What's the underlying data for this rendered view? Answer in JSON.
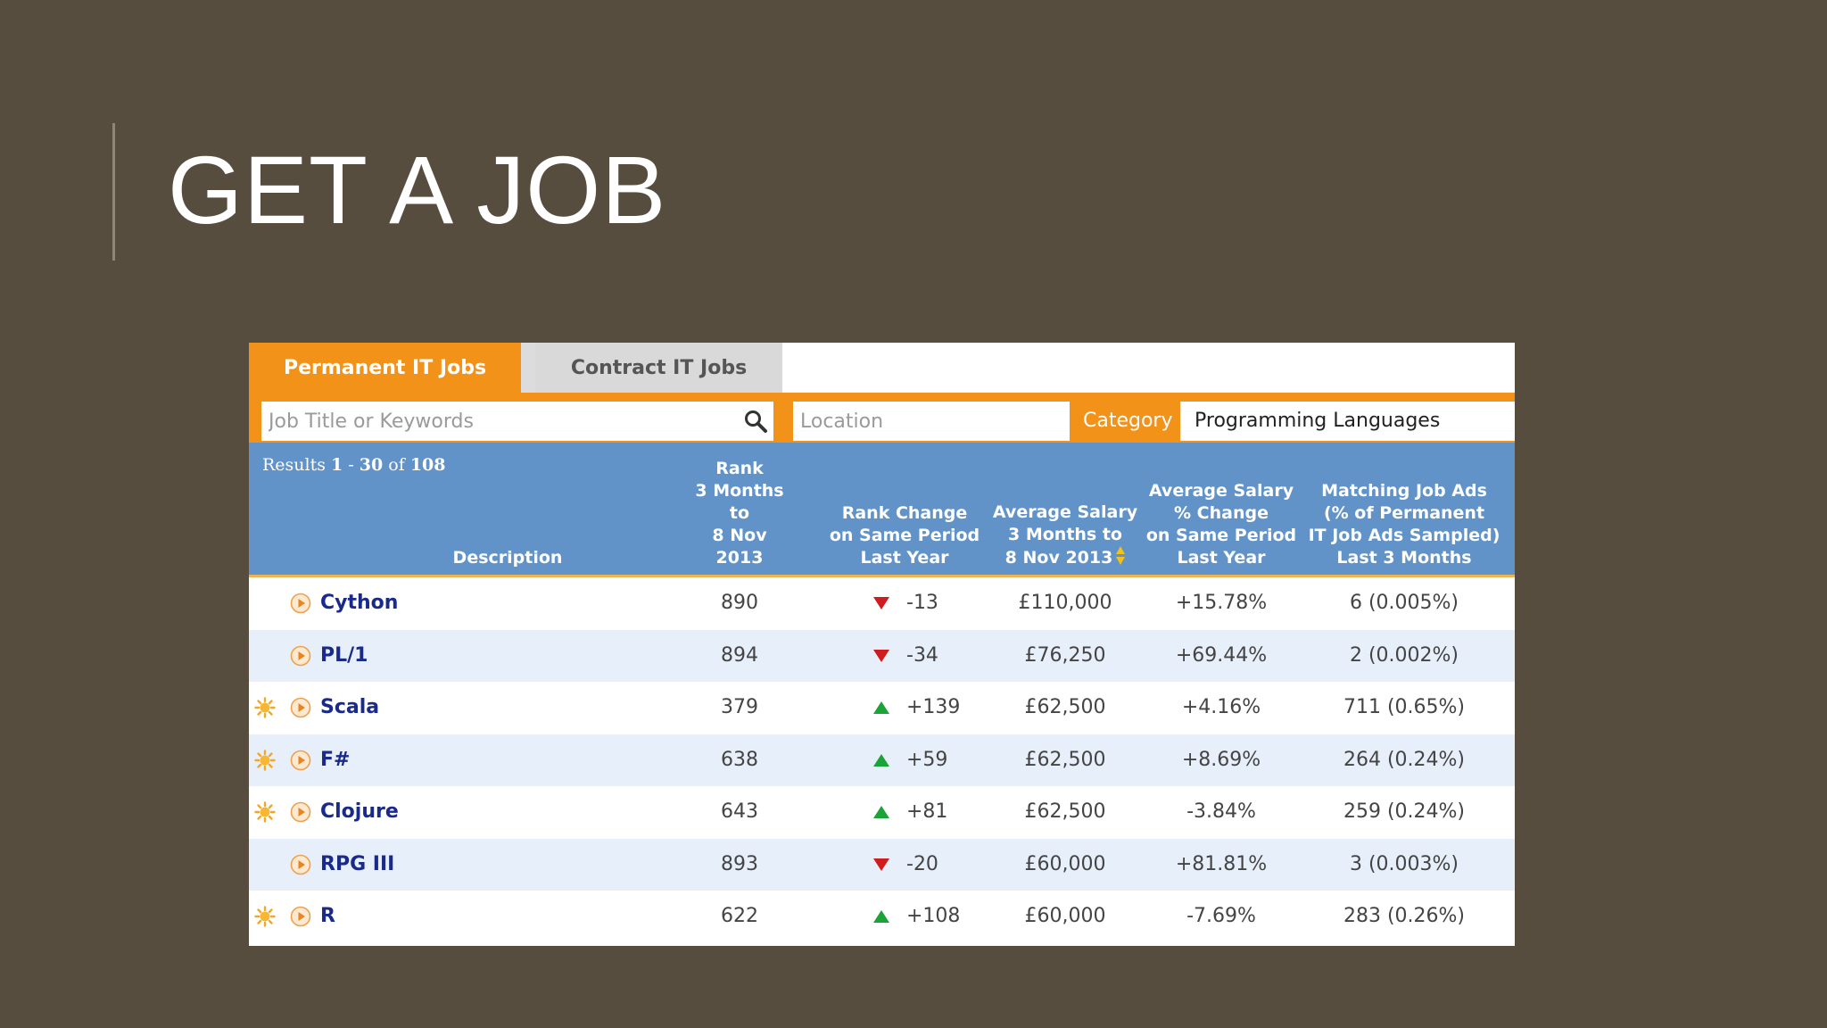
{
  "slide": {
    "title": "GET A JOB"
  },
  "tabs": {
    "permanent": "Permanent IT Jobs",
    "contract": "Contract IT Jobs"
  },
  "search": {
    "keywords_placeholder": "Job Title or Keywords",
    "location_placeholder": "Location",
    "category_label": "Category",
    "category_value": "Programming Languages"
  },
  "results": {
    "prefix": "Results",
    "from": "1",
    "dash": "-",
    "to": "30",
    "of": "of",
    "total": "108"
  },
  "headers": {
    "description": "Description",
    "rank": [
      "Rank",
      "3 Months to",
      "8 Nov 2013"
    ],
    "rank_change": [
      "Rank Change",
      "on Same Period",
      "Last Year"
    ],
    "avg_salary": [
      "Average Salary",
      "3 Months to",
      "8 Nov 2013"
    ],
    "salary_change": [
      "Average Salary",
      "% Change",
      "on Same Period",
      "Last Year"
    ],
    "job_ads": [
      "Matching Job Ads",
      "(% of Permanent",
      "IT Job Ads Sampled)",
      "Last 3 Months"
    ]
  },
  "rows": [
    {
      "name": "Cython",
      "hot": false,
      "rank": "890",
      "trend": "down",
      "change": "-13",
      "salary": "£110,000",
      "salary_change": "+15.78%",
      "ads": "6 (0.005%)"
    },
    {
      "name": "PL/1",
      "hot": false,
      "rank": "894",
      "trend": "down",
      "change": "-34",
      "salary": "£76,250",
      "salary_change": "+69.44%",
      "ads": "2 (0.002%)"
    },
    {
      "name": "Scala",
      "hot": true,
      "rank": "379",
      "trend": "up",
      "change": "+139",
      "salary": "£62,500",
      "salary_change": "+4.16%",
      "ads": "711 (0.65%)"
    },
    {
      "name": "F#",
      "hot": true,
      "rank": "638",
      "trend": "up",
      "change": "+59",
      "salary": "£62,500",
      "salary_change": "+8.69%",
      "ads": "264 (0.24%)"
    },
    {
      "name": "Clojure",
      "hot": true,
      "rank": "643",
      "trend": "up",
      "change": "+81",
      "salary": "£62,500",
      "salary_change": "-3.84%",
      "ads": "259 (0.24%)"
    },
    {
      "name": "RPG III",
      "hot": false,
      "rank": "893",
      "trend": "down",
      "change": "-20",
      "salary": "£60,000",
      "salary_change": "+81.81%",
      "ads": "3 (0.003%)"
    },
    {
      "name": "R",
      "hot": true,
      "rank": "622",
      "trend": "up",
      "change": "+108",
      "salary": "£60,000",
      "salary_change": "-7.69%",
      "ads": "283 (0.26%)"
    }
  ],
  "icons": {
    "search": "search-icon",
    "hot": "sun-icon",
    "play": "play-circle-icon",
    "trend_up": "arrow-up-icon",
    "trend_down": "arrow-down-icon",
    "sort": "sort-icon"
  },
  "colors": {
    "background": "#574d3e",
    "accent_orange": "#f29218",
    "header_blue": "#6193c9",
    "row_alt": "#e7f0fa",
    "link_navy": "#1a2a8a",
    "trend_up": "#1aa337",
    "trend_down": "#d01c1c"
  }
}
